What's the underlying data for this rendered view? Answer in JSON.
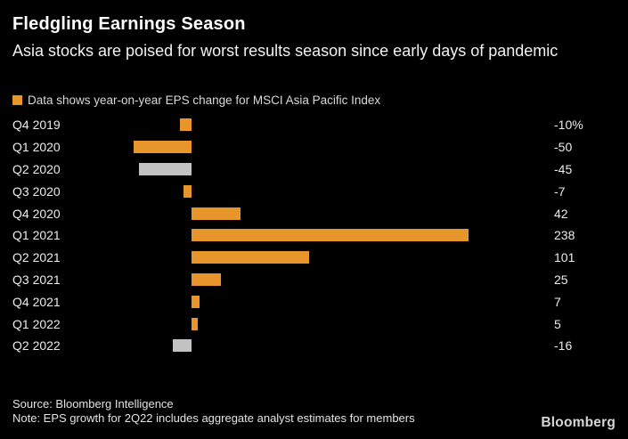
{
  "header": {
    "title": "Fledgling Earnings Season",
    "subtitle": "Asia stocks are poised for worst results season since early days of pandemic",
    "legend_label": "Data shows year-on-year EPS change for MSCI Asia Pacific Index"
  },
  "chart_data": {
    "type": "bar",
    "orientation": "horizontal",
    "title": "Fledgling Earnings Season",
    "legend": "Data shows year-on-year EPS change for MSCI Asia Pacific Index",
    "unit": "percent (year-on-year EPS change)",
    "categories": [
      "Q4 2019",
      "Q1 2020",
      "Q2 2020",
      "Q3 2020",
      "Q4 2020",
      "Q1 2021",
      "Q2 2021",
      "Q3 2021",
      "Q4 2021",
      "Q1 2022",
      "Q2 2022"
    ],
    "values": [
      -10,
      -50,
      -45,
      -7,
      42,
      238,
      101,
      25,
      7,
      5,
      -16
    ],
    "value_labels": [
      "-10%",
      "-50",
      "-45",
      "-7",
      "42",
      "238",
      "101",
      "25",
      "7",
      "5",
      "-16"
    ],
    "bar_colors": [
      "orange",
      "orange",
      "gray",
      "orange",
      "orange",
      "orange",
      "orange",
      "orange",
      "orange",
      "orange",
      "gray"
    ],
    "xlim": [
      -50,
      238
    ],
    "grid": false,
    "value_labels_position": "right column",
    "category_labels_position": "left column"
  },
  "colors": {
    "background": "#000000",
    "bar_orange": "#E8962C",
    "bar_gray": "#C2C2C2",
    "title_text": "#FFFFFF",
    "subtitle_text": "#F2F2F2",
    "legend_text": "#D9D9D9",
    "label_text": "#ECECEC",
    "footer_text": "#E3E3E3",
    "brand_text": "#D6D6D6"
  },
  "footer": {
    "source": "Source: Bloomberg Intelligence",
    "note": "Note: EPS growth for 2Q22 includes aggregate analyst estimates for members",
    "brand": "Bloomberg"
  }
}
